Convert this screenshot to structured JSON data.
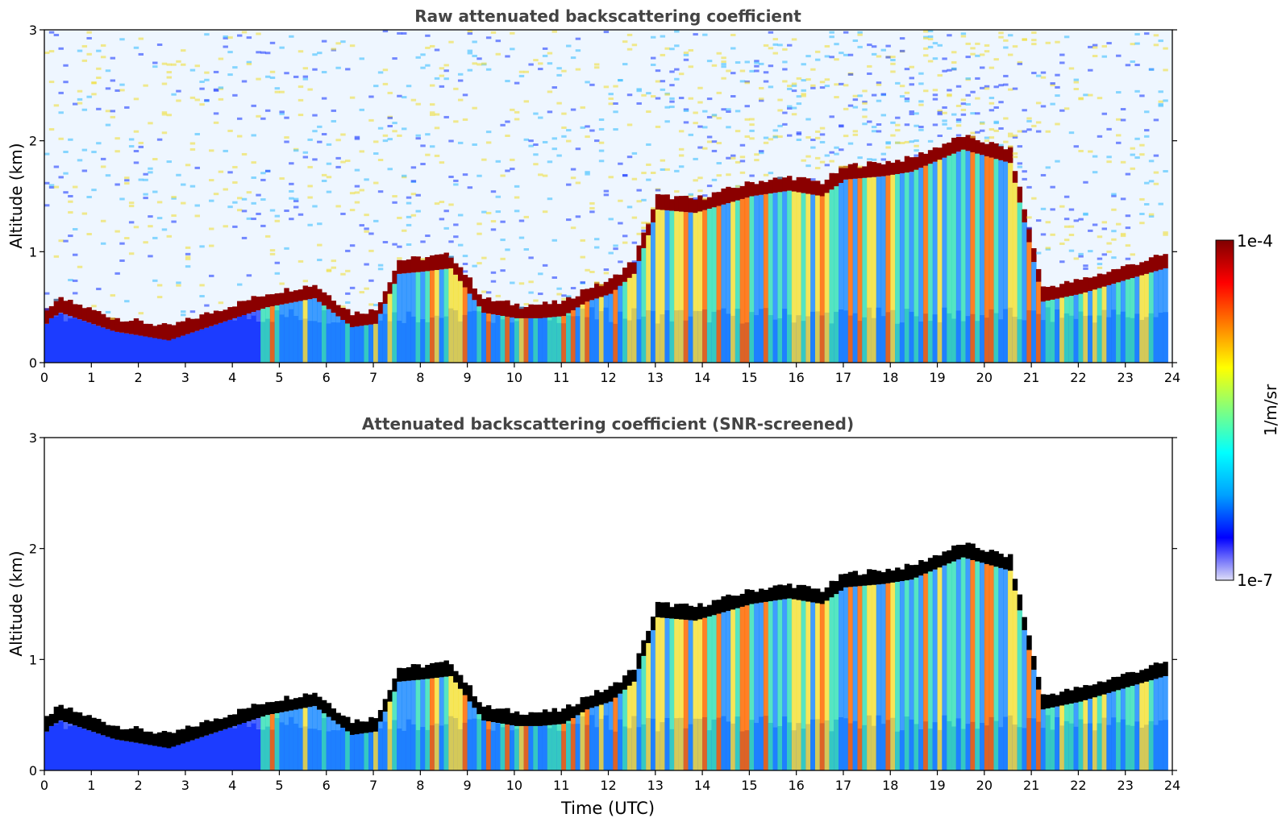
{
  "figure": {
    "colorbar": {
      "label": "1/m/sr",
      "max_label": "1e-4",
      "min_label": "1e-7",
      "scale": "log",
      "colormap": "jet",
      "colors": [
        "#dedef7",
        "#0000ff",
        "#00a0ff",
        "#00ffff",
        "#7fff80",
        "#ffff00",
        "#ff8000",
        "#ff0000",
        "#800000"
      ]
    },
    "shared_xlabel": "Time (UTC)"
  },
  "chart_data": [
    {
      "type": "heatmap",
      "title": "Raw attenuated backscattering coefficient",
      "xlabel": "",
      "ylabel": "Altitude (km)",
      "xlim": [
        0,
        24
      ],
      "ylim": [
        0,
        3
      ],
      "xticks": [
        "0",
        "1",
        "2",
        "3",
        "4",
        "5",
        "6",
        "7",
        "8",
        "9",
        "10",
        "11",
        "12",
        "13",
        "14",
        "15",
        "16",
        "17",
        "18",
        "19",
        "20",
        "21",
        "22",
        "23",
        "24"
      ],
      "yticks": [
        "0",
        "1",
        "2",
        "3"
      ],
      "cloud_base_km": {
        "x": [
          0,
          0.1,
          0.3,
          1.45,
          1.9,
          2.6,
          4.7,
          5.7,
          6.5,
          7.0,
          7.5,
          8.0,
          8.6,
          9.3,
          10.0,
          10.5,
          11.0,
          11.5,
          12.0,
          12.5,
          13.0,
          13.8,
          14.2,
          15.0,
          15.8,
          16.5,
          17.0,
          17.8,
          18.4,
          19.5,
          20.5,
          21.2,
          22.0,
          23.0,
          23.8
        ],
        "y": [
          0.35,
          0.4,
          0.45,
          0.28,
          0.25,
          0.2,
          0.5,
          0.58,
          0.32,
          0.35,
          0.8,
          0.82,
          0.85,
          0.45,
          0.4,
          0.4,
          0.42,
          0.55,
          0.62,
          0.8,
          1.38,
          1.35,
          1.4,
          1.5,
          1.55,
          1.5,
          1.65,
          1.68,
          1.72,
          1.92,
          1.8,
          0.55,
          0.62,
          0.75,
          0.85
        ]
      }
    },
    {
      "type": "heatmap",
      "title": "Attenuated backscattering coefficient (SNR-screened)",
      "xlabel": "Time (UTC)",
      "ylabel": "Altitude (km)",
      "xlim": [
        0,
        24
      ],
      "ylim": [
        0,
        3
      ],
      "xticks": [
        "0",
        "1",
        "2",
        "3",
        "4",
        "5",
        "6",
        "7",
        "8",
        "9",
        "10",
        "11",
        "12",
        "13",
        "14",
        "15",
        "16",
        "17",
        "18",
        "19",
        "20",
        "21",
        "22",
        "23",
        "24"
      ],
      "yticks": [
        "0",
        "1",
        "2",
        "3"
      ],
      "cloud_base_km": {
        "x": [
          0,
          0.1,
          0.3,
          1.45,
          1.9,
          2.6,
          4.7,
          5.7,
          6.5,
          7.0,
          7.5,
          8.0,
          8.6,
          9.3,
          10.0,
          10.5,
          11.0,
          11.5,
          12.0,
          12.5,
          13.0,
          13.8,
          14.2,
          15.0,
          15.8,
          16.5,
          17.0,
          17.8,
          18.4,
          19.5,
          20.5,
          21.2,
          22.0,
          23.0,
          23.8
        ],
        "y": [
          0.35,
          0.4,
          0.45,
          0.28,
          0.25,
          0.2,
          0.5,
          0.58,
          0.32,
          0.35,
          0.8,
          0.82,
          0.85,
          0.45,
          0.4,
          0.4,
          0.42,
          0.55,
          0.62,
          0.8,
          1.38,
          1.35,
          1.4,
          1.5,
          1.55,
          1.5,
          1.65,
          1.68,
          1.72,
          1.92,
          1.8,
          0.55,
          0.62,
          0.75,
          0.85
        ]
      }
    }
  ]
}
